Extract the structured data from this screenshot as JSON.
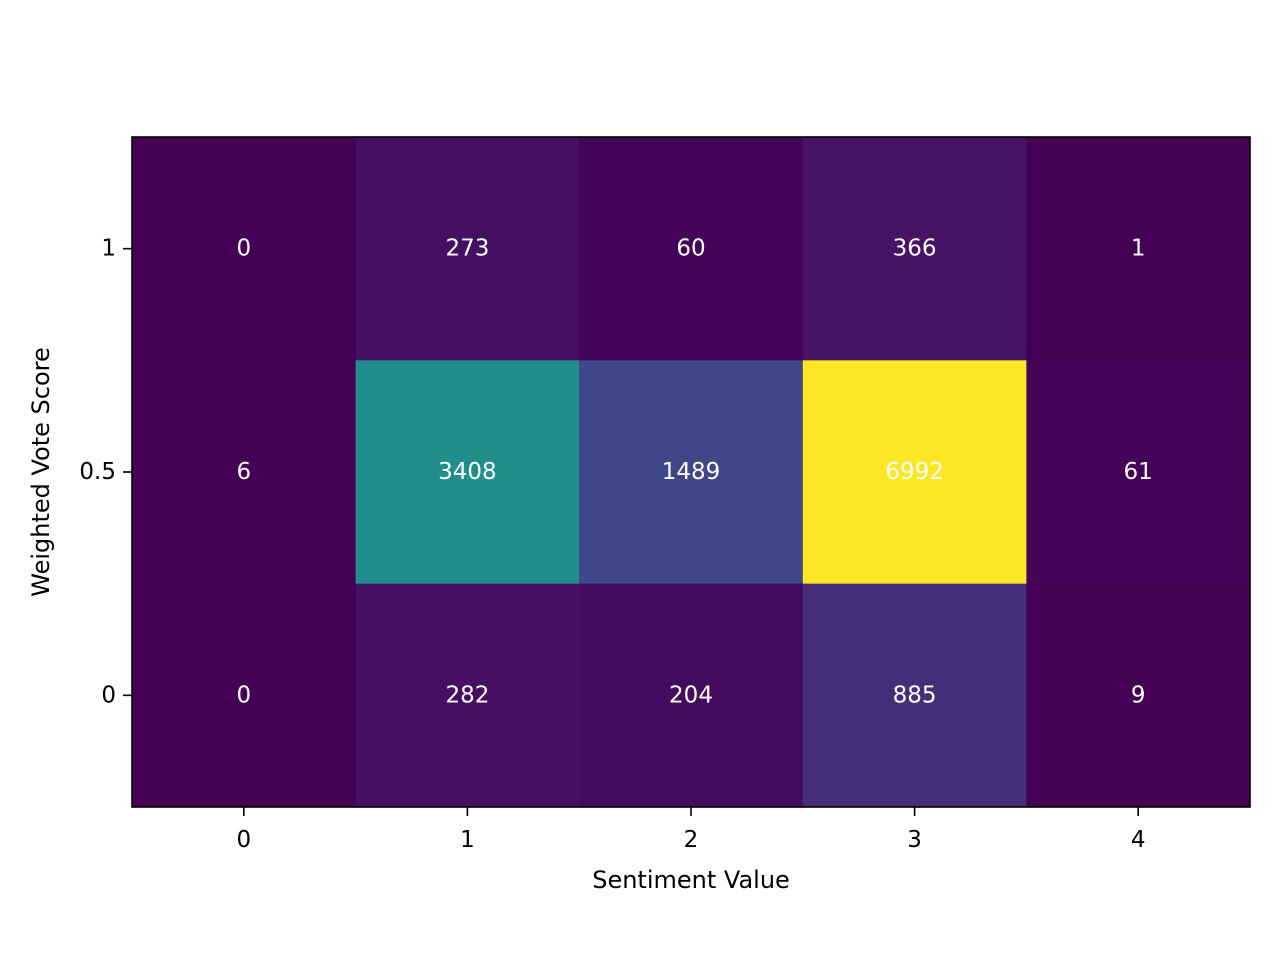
{
  "chart_data": {
    "type": "heatmap",
    "title": "",
    "xlabel": "Sentiment Value",
    "ylabel": "Weighted Vote Score",
    "x_categories": [
      "0",
      "1",
      "2",
      "3",
      "4"
    ],
    "y_categories": [
      "1",
      "0.5",
      "0"
    ],
    "values": [
      [
        0,
        273,
        60,
        366,
        1
      ],
      [
        6,
        3408,
        1489,
        6992,
        61
      ],
      [
        0,
        282,
        204,
        885,
        9
      ]
    ],
    "colormap": "viridis",
    "grid": false,
    "colorbar": false
  }
}
